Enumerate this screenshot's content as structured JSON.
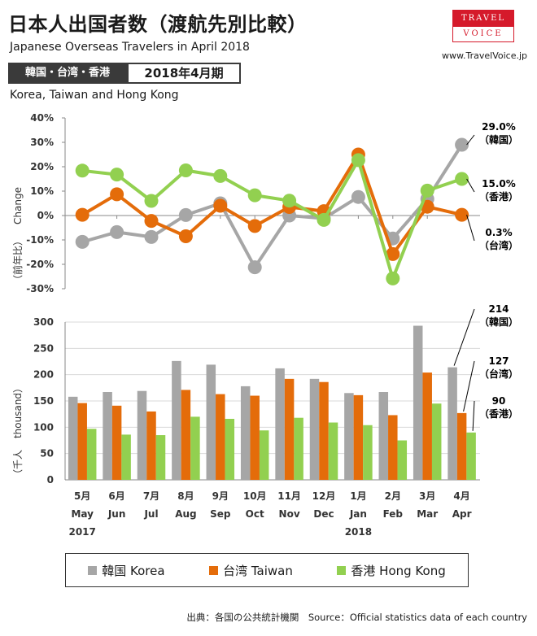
{
  "header": {
    "title": "日本人出国者数（渡航先別比較）",
    "subtitle": "Japanese Overseas Travelers in April 2018",
    "logo_top": "TRAVEL",
    "logo_bottom": "VOICE",
    "site": "www.TravelVoice.jp",
    "region_label": "韓国・台湾・香港",
    "period_label": "2018年4月期",
    "region_en": "Korea, Taiwan and Hong Kong"
  },
  "colors": {
    "korea": "#a6a6a6",
    "taiwan": "#e46c0a",
    "hongkong": "#92d050"
  },
  "legend": [
    {
      "name": "韓国 Korea",
      "key": "korea"
    },
    {
      "name": "台湾 Taiwan",
      "key": "taiwan"
    },
    {
      "name": "香港 Hong Kong",
      "key": "hongkong"
    }
  ],
  "source": "出典：各国の公共統計機関　Source：Official statistics data of each country",
  "chart_data": [
    {
      "type": "line",
      "ylabel_jp": "（前年比）",
      "ylabel_en": "Change",
      "ylim": [
        -30,
        40
      ],
      "yticks": [
        "40%",
        "30%",
        "20%",
        "10%",
        "0%",
        "-10%",
        "-20%",
        "-30%"
      ],
      "grid": false,
      "categories_jp": [
        "5月",
        "6月",
        "7月",
        "8月",
        "9月",
        "10月",
        "11月",
        "12月",
        "1月",
        "2月",
        "3月",
        "4月"
      ],
      "categories_en": [
        "May",
        "Jun",
        "Jul",
        "Aug",
        "Sep",
        "Oct",
        "Nov",
        "Dec",
        "Jan",
        "Feb",
        "Mar",
        "Apr"
      ],
      "series": [
        {
          "name": "韓国 Korea",
          "key": "korea",
          "values": [
            -10.8,
            -6.8,
            -8.8,
            0.2,
            5.0,
            -21.2,
            0.0,
            -1.2,
            7.6,
            -9.4,
            6.8,
            29.0
          ]
        },
        {
          "name": "台湾 Taiwan",
          "key": "taiwan",
          "values": [
            0.3,
            8.7,
            -2.2,
            -8.5,
            4.0,
            -4.3,
            3.5,
            1.8,
            25.0,
            -15.8,
            3.6,
            0.3
          ]
        },
        {
          "name": "香港 Hong Kong",
          "key": "hongkong",
          "values": [
            18.4,
            16.8,
            6.0,
            18.5,
            16.2,
            8.3,
            6.1,
            -1.8,
            22.7,
            -25.8,
            10.2,
            15.0
          ]
        }
      ],
      "end_labels": [
        {
          "key": "korea",
          "value": "29.0%",
          "place": "（韓国）"
        },
        {
          "key": "hongkong",
          "value": "15.0%",
          "place": "（香港）"
        },
        {
          "key": "taiwan",
          "value": "0.3%",
          "place": "（台湾）"
        }
      ]
    },
    {
      "type": "bar",
      "ylabel_jp": "（千人",
      "ylabel_en": "thousand）",
      "ylim": [
        0,
        300
      ],
      "yticks": [
        "300",
        "250",
        "200",
        "150",
        "100",
        "50",
        "0"
      ],
      "grid": true,
      "categories_jp": [
        "5月",
        "6月",
        "7月",
        "8月",
        "9月",
        "10月",
        "11月",
        "12月",
        "1月",
        "2月",
        "3月",
        "4月"
      ],
      "categories_en": [
        "May",
        "Jun",
        "Jul",
        "Aug",
        "Sep",
        "Oct",
        "Nov",
        "Dec",
        "Jan",
        "Feb",
        "Mar",
        "Apr"
      ],
      "years": [
        {
          "index": 0,
          "label": "2017"
        },
        {
          "index": 8,
          "label": "2018"
        }
      ],
      "series": [
        {
          "name": "韓国 Korea",
          "key": "korea",
          "values": [
            158,
            167,
            169,
            226,
            219,
            178,
            212,
            192,
            165,
            167,
            293,
            214
          ]
        },
        {
          "name": "台湾 Taiwan",
          "key": "taiwan",
          "values": [
            146,
            141,
            130,
            171,
            163,
            160,
            192,
            186,
            161,
            123,
            204,
            127
          ]
        },
        {
          "name": "香港 Hong Kong",
          "key": "hongkong",
          "values": [
            97,
            86,
            85,
            120,
            116,
            94,
            118,
            109,
            104,
            75,
            145,
            90
          ]
        }
      ],
      "end_labels": [
        {
          "key": "korea",
          "value": "214",
          "place": "（韓国）"
        },
        {
          "key": "taiwan",
          "value": "127",
          "place": "（台湾）"
        },
        {
          "key": "hongkong",
          "value": "90",
          "place": "（香港）"
        }
      ]
    }
  ]
}
